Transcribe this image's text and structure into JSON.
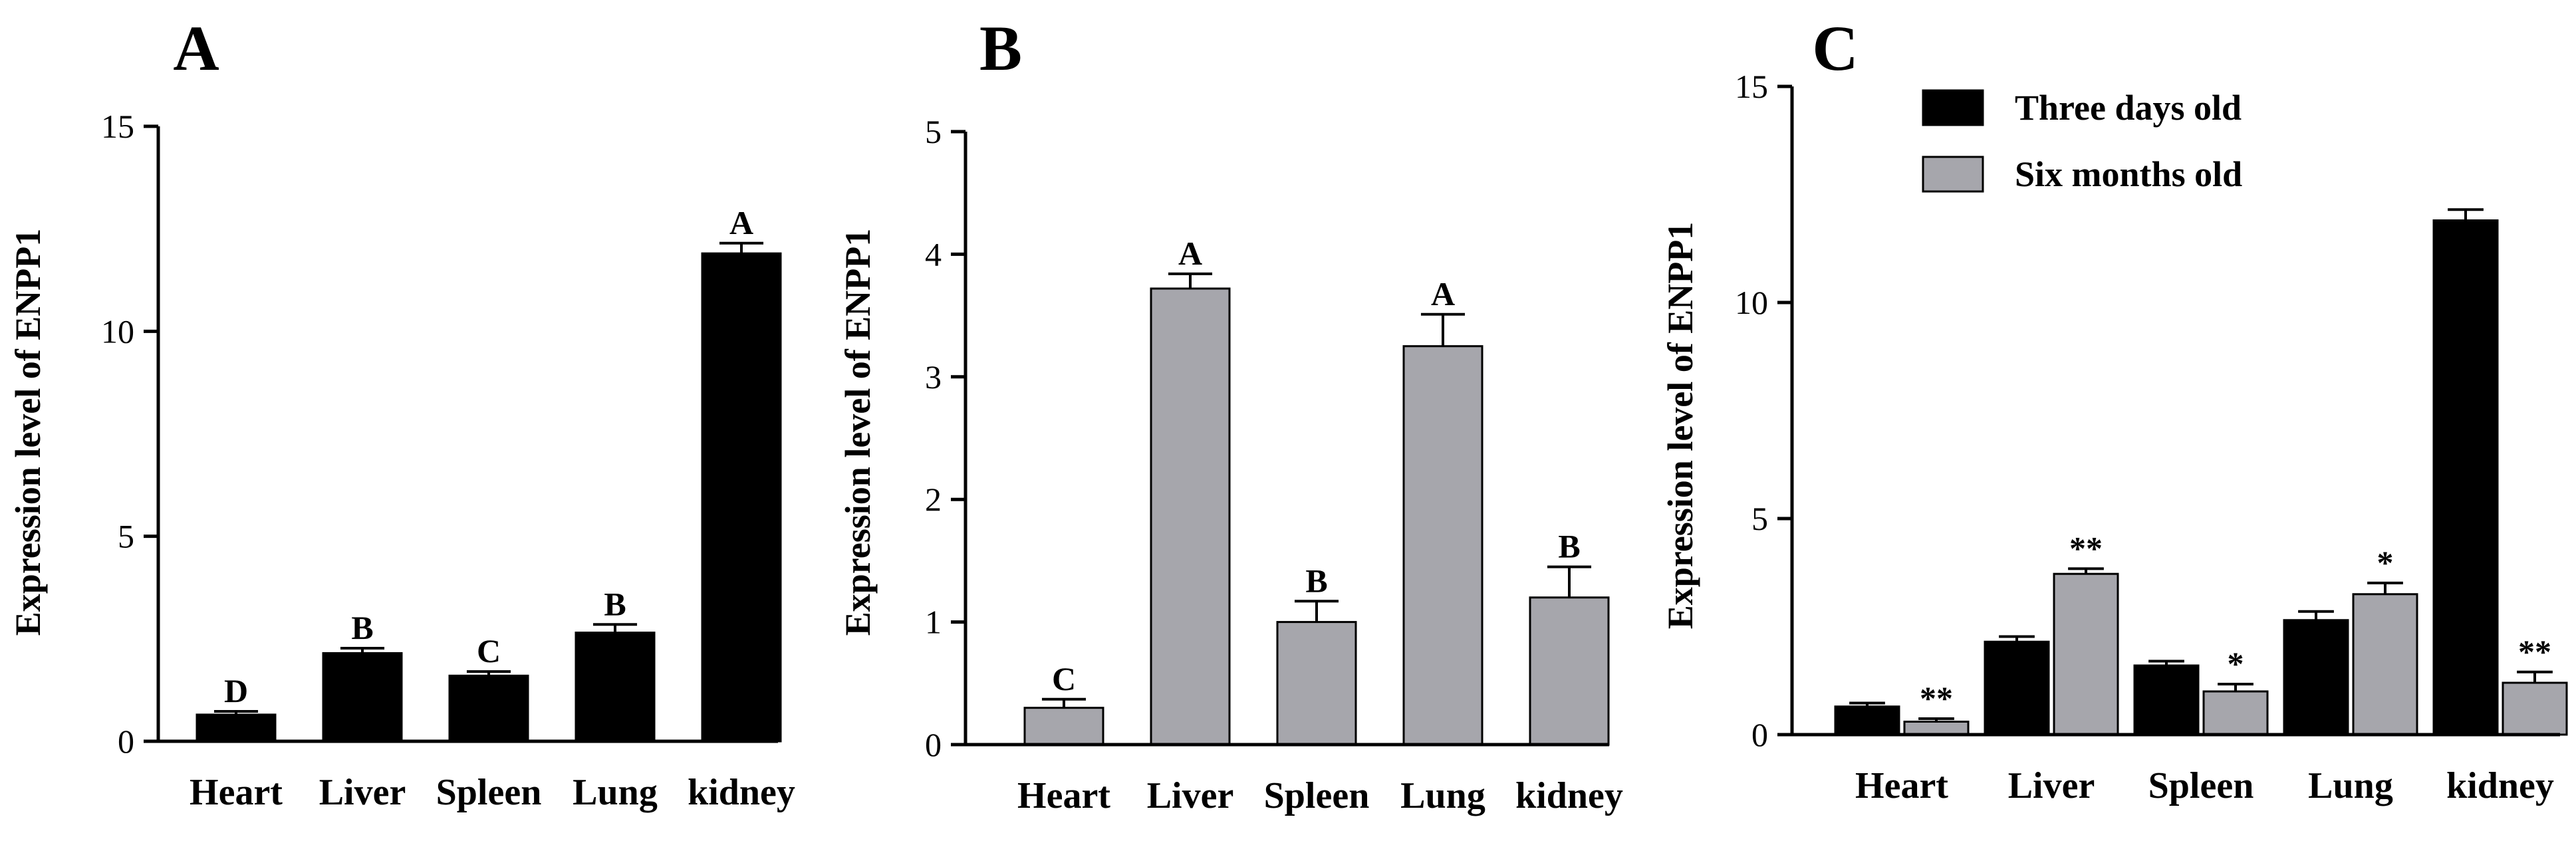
{
  "chart_data": [
    {
      "panel": "A",
      "type": "bar",
      "title": "",
      "xlabel": "",
      "ylabel": "Expression level of ENPP1",
      "ylim": [
        0,
        15
      ],
      "yticks": [
        0,
        5,
        10,
        15
      ],
      "categories": [
        "Heart",
        "Liver",
        "Spleen",
        "Lung",
        "kidney"
      ],
      "series": [
        {
          "values": [
            0.65,
            2.15,
            1.6,
            2.65,
            11.9
          ],
          "errors": [
            0.08,
            0.12,
            0.1,
            0.2,
            0.25
          ],
          "labels": [
            "D",
            "B",
            "C",
            "B",
            "A"
          ],
          "color": "#000000"
        }
      ]
    },
    {
      "panel": "B",
      "type": "bar",
      "title": "",
      "xlabel": "",
      "ylabel": "Expression level of ENPP1",
      "ylim": [
        0,
        5
      ],
      "yticks": [
        0,
        1,
        2,
        3,
        4,
        5
      ],
      "categories": [
        "Heart",
        "Liver",
        "Spleen",
        "Lung",
        "kidney"
      ],
      "series": [
        {
          "values": [
            0.3,
            3.72,
            1.0,
            3.25,
            1.2
          ],
          "errors": [
            0.07,
            0.12,
            0.17,
            0.26,
            0.25
          ],
          "labels": [
            "C",
            "A",
            "B",
            "A",
            "B"
          ],
          "color": "#a6a6ac"
        }
      ]
    },
    {
      "panel": "C",
      "type": "bar",
      "title": "",
      "xlabel": "",
      "ylabel": "Expression level of ENPP1",
      "ylim": [
        0,
        15
      ],
      "yticks": [
        0,
        5,
        10,
        15
      ],
      "legend": "top-left",
      "categories": [
        "Heart",
        "Liver",
        "Spleen",
        "Lung",
        "kidney"
      ],
      "series": [
        {
          "name": "Three days old",
          "values": [
            0.65,
            2.15,
            1.6,
            2.65,
            11.9
          ],
          "errors": [
            0.08,
            0.12,
            0.1,
            0.2,
            0.25
          ],
          "labels": [
            "",
            "",
            "",
            "",
            ""
          ],
          "color": "#000000"
        },
        {
          "name": "Six months old",
          "values": [
            0.3,
            3.72,
            1.0,
            3.25,
            1.2
          ],
          "errors": [
            0.07,
            0.12,
            0.17,
            0.26,
            0.25
          ],
          "labels": [
            "**",
            "**",
            "*",
            "*",
            "**"
          ],
          "color": "#a6a6ac"
        }
      ]
    }
  ]
}
